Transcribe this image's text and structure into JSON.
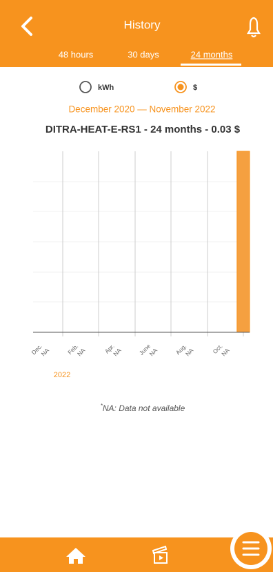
{
  "header": {
    "title": "History",
    "tabs": [
      "48 hours",
      "30 days",
      "24 months"
    ],
    "active_tab": 2
  },
  "unit_options": [
    "kWh",
    "$"
  ],
  "selected_unit": 1,
  "period": "December 2020 — November 2022",
  "chart": {
    "type": "bar",
    "title": "DITRA-HEAT-E-RS1 - 24 months - 0.03 $",
    "categories": [
      "Dec.",
      null,
      "Feb.",
      null,
      "Apr.",
      null,
      "June",
      null,
      "Aug.",
      null,
      "Oct.",
      null
    ],
    "category_sublabels": [
      "NA",
      null,
      "NA",
      null,
      "NA",
      null,
      "NA",
      null,
      "NA",
      null,
      "NA",
      null
    ],
    "values": [
      null,
      null,
      null,
      null,
      null,
      null,
      null,
      null,
      null,
      null,
      null,
      0.03
    ],
    "ylim": [
      0,
      0.03
    ],
    "color": "#f5a040",
    "year_label": "2022"
  },
  "footnote": {
    "mark": "*",
    "text": "NA: Data not available"
  }
}
